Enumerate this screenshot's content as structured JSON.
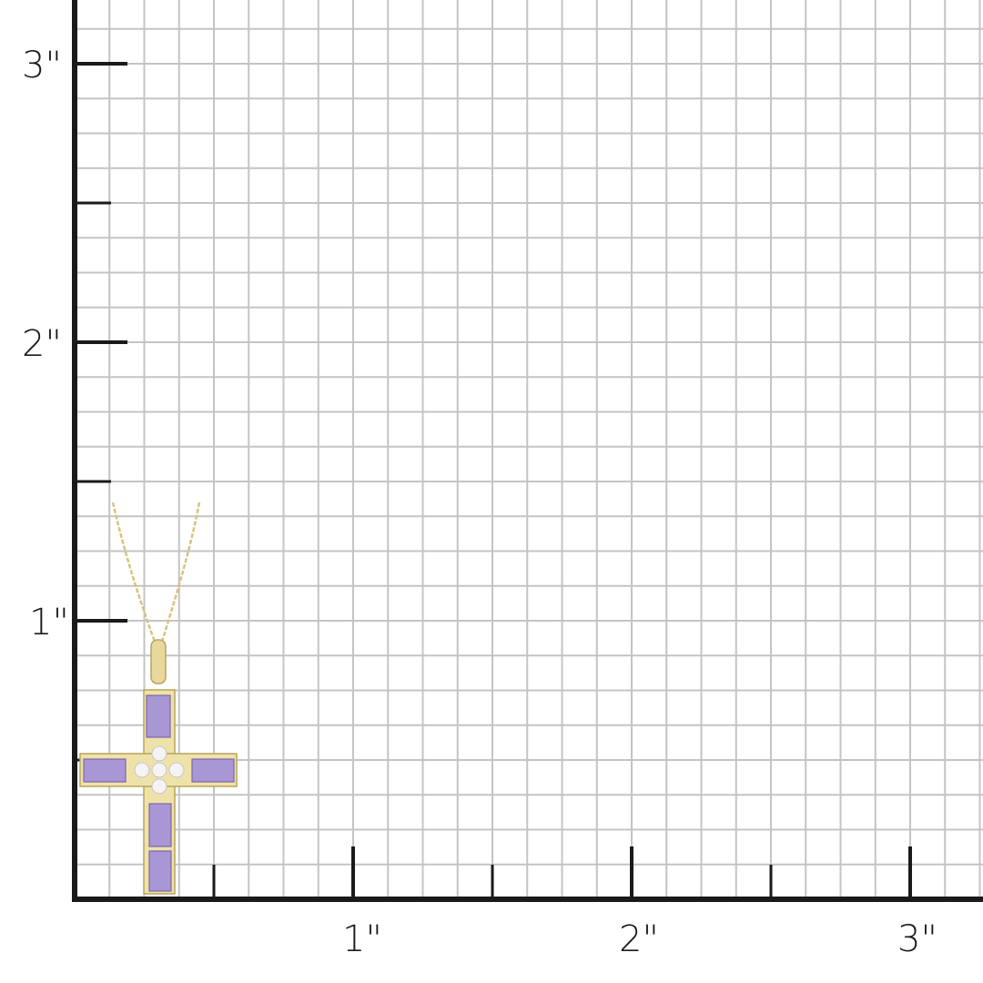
{
  "ruler": {
    "unit_symbol": "\"",
    "y_labels": [
      "1\"",
      "2\"",
      "3\""
    ],
    "x_labels": [
      "1\"",
      "2\"",
      "3\""
    ],
    "squares_per_inch": 8,
    "axis_color": "#1a1a1a",
    "grid_color": "#c4c4c4"
  },
  "product": {
    "type": "cross pendant necklace",
    "metal_color": "#e3cf8c",
    "stone_color": "#a897d4",
    "accent_stone_color": "#f4f4f4"
  }
}
